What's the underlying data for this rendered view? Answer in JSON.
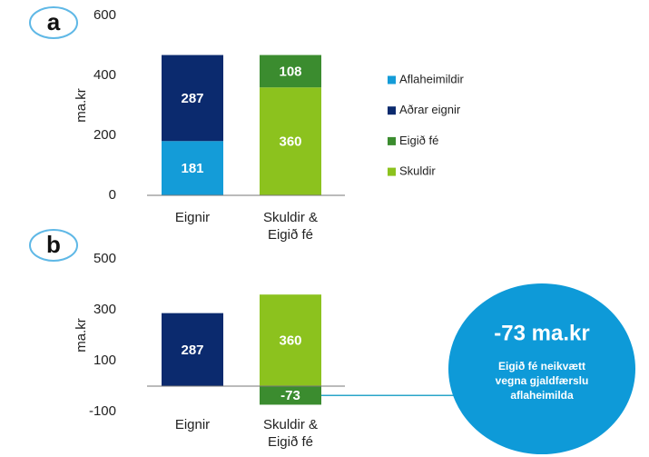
{
  "chart_data": [
    {
      "type": "bar",
      "panel_label": "a",
      "ylabel": "ma.kr",
      "categories": [
        "Eignir",
        "Skuldir & Eigið fé"
      ],
      "series": [
        {
          "name": "Aflaheimildir",
          "color": "#149cd8",
          "values": [
            181,
            null
          ]
        },
        {
          "name": "Aðrar eignir",
          "color": "#0b2a6e",
          "values": [
            287,
            null
          ]
        },
        {
          "name": "Eigið fé",
          "color": "#3b8c2f",
          "values": [
            null,
            108
          ]
        },
        {
          "name": "Skuldir",
          "color": "#8cc21e",
          "values": [
            null,
            360
          ]
        }
      ],
      "ylim": [
        0,
        600
      ],
      "yticks": [
        0,
        200,
        400,
        600
      ],
      "legend": "right"
    },
    {
      "type": "bar",
      "panel_label": "b",
      "ylabel": "ma.kr",
      "categories": [
        "Eignir",
        "Skuldir & Eigið fé"
      ],
      "series": [
        {
          "color": "#0b2a6e",
          "values": [
            287,
            null
          ]
        },
        {
          "color": "#8cc21e",
          "values": [
            null,
            360
          ]
        },
        {
          "color": "#3b8c2f",
          "values": [
            null,
            -73
          ]
        }
      ],
      "ylim": [
        -100,
        500
      ],
      "yticks": [
        -100,
        100,
        300,
        500
      ],
      "annotation": {
        "title": "-73 ma.kr",
        "lines": [
          "Eigið fé neikvætt",
          "vegna gjaldfærslu",
          "aflaheimilda"
        ]
      }
    }
  ]
}
